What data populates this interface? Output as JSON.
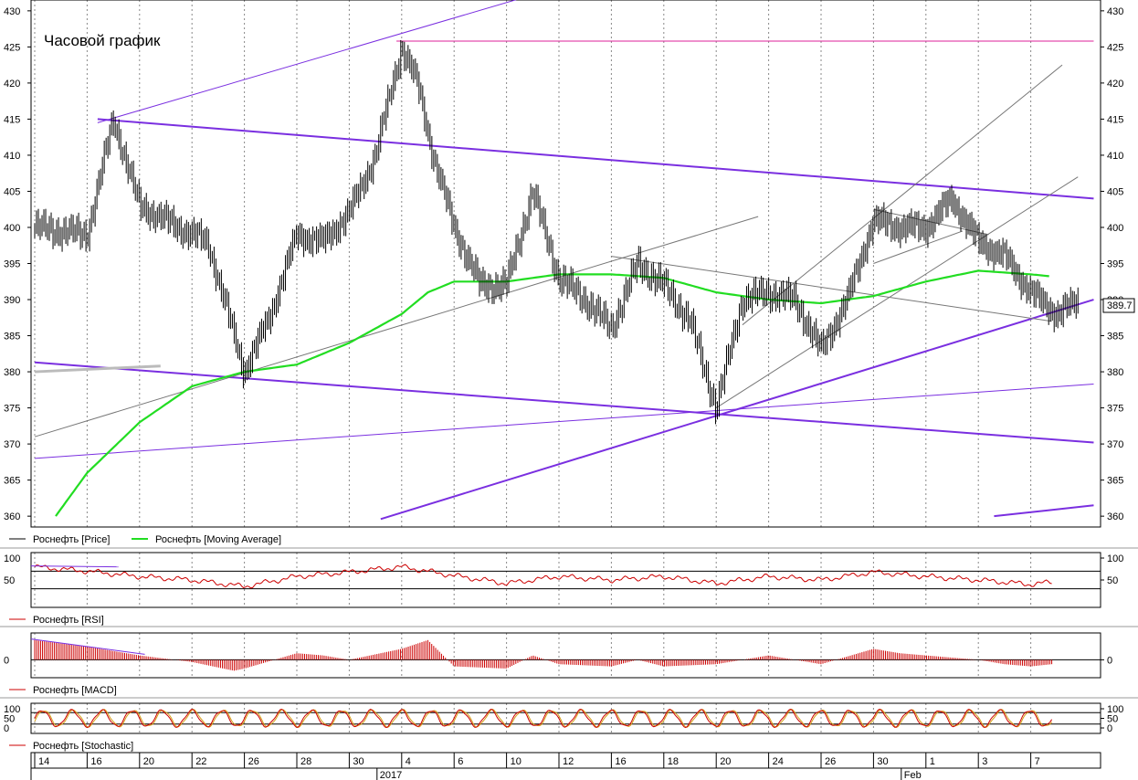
{
  "chart_data": [
    {
      "type": "line",
      "title": "Часовой график",
      "instrument": "Роснефть",
      "ylim": [
        358.5,
        431.5
      ],
      "ytick_values": [
        360,
        365,
        370,
        375,
        380,
        385,
        390,
        395,
        400,
        405,
        410,
        415,
        420,
        425,
        430
      ],
      "last_price": "389.7",
      "grid": true,
      "legend_position": "bottom-left",
      "legend": [
        {
          "label": "Роснефть [Price]",
          "color": "#000000"
        },
        {
          "label": "Роснефть [Moving Average]",
          "color": "#22dd22"
        }
      ],
      "x_tick_labels": [
        "14",
        "16",
        "20",
        "22",
        "26",
        "28",
        "30",
        "4",
        "6",
        "10",
        "12",
        "16",
        "18",
        "20",
        "24",
        "26",
        "30",
        "1",
        "3",
        "7"
      ],
      "x_secondary_labels": [
        "2017",
        "Feb"
      ],
      "price_waypoints": {
        "x_session_index": [
          0,
          1,
          1.5,
          2,
          3,
          3.3,
          4,
          4.5,
          5,
          5.5,
          6,
          6.5,
          7,
          7.3,
          7.6,
          8,
          8.5,
          9,
          9.5,
          10,
          10.5,
          11,
          11.5,
          12,
          12.5,
          13,
          13.5,
          14,
          14.5,
          15,
          15.5,
          16,
          16.5,
          17,
          17.5,
          18,
          18.5,
          19,
          19.5,
          19.9
        ],
        "close": [
          400,
          399,
          415,
          403,
          399,
          398,
          380,
          388,
          399,
          398,
          402,
          410,
          425,
          420,
          410,
          400,
          392,
          392,
          405,
          393,
          390,
          386,
          395,
          392,
          387,
          375,
          390,
          391,
          390,
          383,
          390,
          401,
          400,
          400,
          404,
          398,
          396,
          391,
          388,
          389.7
        ]
      },
      "moving_average_waypoints": {
        "x_session_index": [
          0.4,
          1,
          2,
          3,
          4,
          5,
          6,
          7,
          7.5,
          8,
          9,
          10,
          11,
          12,
          13,
          14,
          15,
          16,
          17,
          18,
          19,
          19.4
        ],
        "value": [
          360,
          366,
          373,
          378,
          380,
          381,
          384,
          388,
          391,
          392.5,
          392.5,
          393.5,
          393.5,
          393,
          391,
          390,
          389.5,
          390.5,
          392.5,
          394,
          393.5,
          393.2
        ]
      },
      "trendlines": [
        {
          "role": "resistance-upper",
          "color": "#7a2fe0",
          "from": [
            1.2,
            415
          ],
          "to": [
            20.2,
            404
          ]
        },
        {
          "role": "support-lower",
          "color": "#7a2fe0",
          "from": [
            0,
            381.3
          ],
          "to": [
            20.2,
            370.2
          ]
        },
        {
          "role": "uptrend-support",
          "color": "#7a2fe0",
          "from": [
            6.6,
            359.6
          ],
          "to": [
            20.2,
            390
          ]
        },
        {
          "role": "outer-channel-top",
          "color": "#7a2fe0",
          "from": [
            1.2,
            414.5
          ],
          "to": [
            9.4,
            432
          ]
        },
        {
          "role": "outer-channel-bottom",
          "color": "#7a2fe0",
          "from": [
            0,
            368
          ],
          "to": [
            20.2,
            378.3
          ]
        },
        {
          "role": "bottom-right",
          "color": "#7a2fe0",
          "from": [
            18.3,
            360
          ],
          "to": [
            20.2,
            361.5
          ]
        },
        {
          "role": "horizontal-high",
          "color": "#dd2299",
          "from": [
            6.9,
            425.8
          ],
          "to": [
            20.2,
            425.8
          ]
        },
        {
          "role": "thin-channel-1",
          "color": "#777777",
          "from": [
            0,
            371
          ],
          "to": [
            13.8,
            401.5
          ]
        },
        {
          "role": "thin-channel-2",
          "color": "#777777",
          "from": [
            13.5,
            386.5
          ],
          "to": [
            19.6,
            422.5
          ]
        },
        {
          "role": "thin-channel-3",
          "color": "#777777",
          "from": [
            13,
            375
          ],
          "to": [
            19.9,
            407
          ]
        },
        {
          "role": "thin-descending",
          "color": "#777777",
          "from": [
            11,
            396
          ],
          "to": [
            19.4,
            387
          ]
        },
        {
          "role": "thin-flag",
          "color": "#777777",
          "from": [
            16,
            395
          ],
          "to": [
            17.7,
            399.5
          ]
        },
        {
          "role": "thin-flag-top",
          "color": "#777777",
          "from": [
            16,
            402.5
          ],
          "to": [
            18.2,
            399
          ]
        },
        {
          "role": "grey-stub",
          "color": "#bbbbbb",
          "from": [
            0,
            380
          ],
          "to": [
            2.4,
            380.8
          ]
        }
      ]
    },
    {
      "type": "line",
      "title": "",
      "legend": [
        {
          "label": "Роснефть [RSI]",
          "color": "#cc0000"
        }
      ],
      "ylim": [
        0,
        100
      ],
      "ytick_values": [
        50,
        100
      ],
      "ytick_labels": [
        "50",
        "100"
      ],
      "reference_lines": [
        30,
        70
      ],
      "waypoints": {
        "x_session_index": [
          0,
          1,
          2,
          3,
          4,
          5,
          6,
          7,
          8,
          9,
          10,
          11,
          12,
          13,
          14,
          15,
          16,
          17,
          18,
          19,
          19.4
        ],
        "value": [
          80,
          70,
          58,
          50,
          35,
          58,
          68,
          80,
          60,
          42,
          58,
          50,
          58,
          42,
          58,
          50,
          68,
          58,
          50,
          40,
          45
        ]
      }
    },
    {
      "type": "bar",
      "title": "",
      "legend": [
        {
          "label": "Роснефть [MACD]",
          "color": "#cc0000"
        }
      ],
      "ytick_values": [
        0
      ],
      "ytick_labels": [
        "0"
      ],
      "envelope": {
        "x_session_index": [
          0,
          1,
          2,
          3,
          3.8,
          4,
          5,
          5.5,
          6,
          7,
          7.5,
          8,
          9,
          9.5,
          10,
          11,
          11.5,
          12,
          13,
          14,
          15,
          16,
          16.5,
          17,
          18,
          18.5,
          19,
          19.4
        ],
        "value": [
          0.9,
          0.6,
          0.2,
          -0.1,
          -0.5,
          -0.4,
          0.3,
          0.2,
          0,
          0.5,
          0.9,
          -0.3,
          -0.4,
          0.2,
          -0.2,
          -0.3,
          0,
          -0.3,
          -0.2,
          0.2,
          -0.2,
          0.5,
          0.3,
          0.2,
          0,
          -0.2,
          -0.3,
          -0.2
        ]
      }
    },
    {
      "type": "line",
      "title": "",
      "legend": [
        {
          "label": "Роснефть [Stochastic]",
          "color": "#cc0000"
        }
      ],
      "ylim": [
        0,
        100
      ],
      "ytick_values": [
        0,
        50,
        100
      ],
      "ytick_labels": [
        "0",
        "50",
        "100"
      ],
      "reference_lines": [
        20,
        80
      ],
      "oscillation": {
        "center": 50,
        "amplitude": 42,
        "cycles": 34
      }
    }
  ]
}
